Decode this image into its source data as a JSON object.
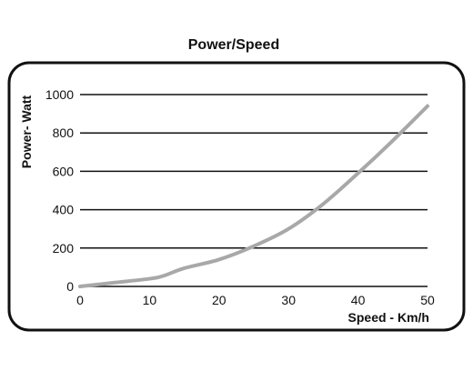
{
  "chart_data": {
    "type": "line",
    "title": "Power/Speed",
    "xlabel": "Speed - Km/h",
    "ylabel": "Power- Watt",
    "xlim": [
      0,
      50
    ],
    "ylim": [
      0,
      1000
    ],
    "xticks": [
      0,
      10,
      20,
      30,
      40,
      50
    ],
    "yticks": [
      0,
      200,
      400,
      600,
      800,
      1000
    ],
    "grid": "horizontal",
    "series": [
      {
        "color": "#a8a8a8",
        "x": [
          0,
          5,
          10,
          12,
          15,
          20,
          25,
          30,
          35,
          40,
          45,
          50
        ],
        "y": [
          0,
          20,
          40,
          55,
          95,
          140,
          210,
          300,
          430,
          590,
          760,
          940
        ]
      }
    ]
  }
}
